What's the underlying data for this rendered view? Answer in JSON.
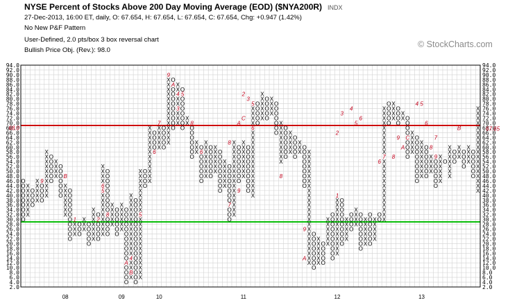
{
  "header": {
    "title": "NYSE Percent of Stocks Above 200 Day Moving Average (EOD) ($NYA200R)",
    "exchange": "INDX",
    "line1": "27-Dec-2013, 16:00 ET, daily, O: 67.654, H: 67.654, L: 67.654, C: 67.654, Chg: +0.947 (1.42%)",
    "line2": "No New P&F Pattern",
    "line3": "User-Defined, 2.0 pts/box 3 box reversal chart",
    "line4": "Bullish Price Obj. (Rev.): 98.0"
  },
  "watermark": "© StockCharts.com",
  "colors": {
    "background": "#ffffff",
    "grid": "#d2d2d2",
    "red_line": "#cc0000",
    "green_line": "#00bb00",
    "month_marker": "#c0001a",
    "price_marker": "#c0001a"
  },
  "chart_data": {
    "type": "point_and_figure",
    "box_size": 2.0,
    "reversal": 3,
    "y_range": [
      2.0,
      94.0
    ],
    "y_ticks": [
      2,
      4,
      6,
      8,
      10,
      12,
      14,
      16,
      18,
      20,
      22,
      24,
      26,
      28,
      30,
      32,
      34,
      36,
      38,
      40,
      42,
      44,
      46,
      48,
      50,
      52,
      54,
      56,
      58,
      60,
      62,
      64,
      66,
      68,
      70,
      72,
      74,
      76,
      78,
      80,
      82,
      84,
      86,
      88,
      90,
      92,
      94
    ],
    "y_tick_labels": [
      "2.0",
      "4.0",
      "6.0",
      "8.0",
      "10.0",
      "12.0",
      "14.0",
      "16.0",
      "18.0",
      "20.0",
      "22.0",
      "24.0",
      "26.0",
      "28.0",
      "30.0",
      "32.0",
      "34.0",
      "36.0",
      "38.0",
      "40.0",
      "42.0",
      "44.0",
      "46.0",
      "48.0",
      "50.0",
      "52.0",
      "54.0",
      "56.0",
      "58.0",
      "60.0",
      "62.0",
      "64.0",
      "66.0",
      "68.0",
      "70.0",
      "72.0",
      "74.0",
      "76.0",
      "78.0",
      "80.0",
      "82.0",
      "84.0",
      "86.0",
      "88.0",
      "90.0",
      "92.0",
      "94.0"
    ],
    "x_labels": [
      {
        "label": "08",
        "col": 9
      },
      {
        "label": "09",
        "col": 21
      },
      {
        "label": "10",
        "col": 29
      },
      {
        "label": "11",
        "col": 47
      },
      {
        "label": "12",
        "col": 67
      },
      {
        "label": "13",
        "col": 85
      }
    ],
    "horizontal_lines": [
      {
        "value": 69.0,
        "color": "red"
      },
      {
        "value": 29.0,
        "color": "green"
      }
    ],
    "last_price": 67.65,
    "last_price_label": "67.65",
    "red_line_label": "68.0",
    "grid": true,
    "columns": [
      {
        "t": "O",
        "lo": 30,
        "hi": 46
      },
      {
        "t": "X",
        "lo": 32,
        "hi": 44
      },
      {
        "t": "O",
        "lo": 36,
        "hi": 42
      },
      {
        "t": "X",
        "lo": 38,
        "hi": 46
      },
      {
        "t": "O",
        "lo": 38,
        "hi": 44
      },
      {
        "t": "X",
        "lo": 40,
        "hi": 58
      },
      {
        "t": "O",
        "lo": 46,
        "hi": 56
      },
      {
        "t": "X",
        "lo": 48,
        "hi": 54
      },
      {
        "t": "O",
        "lo": 40,
        "hi": 52
      },
      {
        "t": "X",
        "lo": 32,
        "hi": 44
      },
      {
        "t": "O",
        "lo": 22,
        "hi": 42
      },
      {
        "t": "X",
        "lo": 24,
        "hi": 30
      },
      {
        "t": "O",
        "lo": 24,
        "hi": 28
      },
      {
        "t": "X",
        "lo": 26,
        "hi": 30
      },
      {
        "t": "O",
        "lo": 20,
        "hi": 28
      },
      {
        "t": "X",
        "lo": 22,
        "hi": 34
      },
      {
        "t": "O",
        "lo": 22,
        "hi": 32
      },
      {
        "t": "X",
        "lo": 24,
        "hi": 52
      },
      {
        "t": "O",
        "lo": 24,
        "hi": 50
      },
      {
        "t": "X",
        "lo": 28,
        "hi": 36
      },
      {
        "t": "O",
        "lo": 24,
        "hi": 34
      },
      {
        "t": "X",
        "lo": 26,
        "hi": 36
      },
      {
        "t": "O",
        "lo": 4,
        "hi": 34
      },
      {
        "t": "X",
        "lo": 6,
        "hi": 40
      },
      {
        "t": "O",
        "lo": 4,
        "hi": 38
      },
      {
        "t": "X",
        "lo": 6,
        "hi": 50
      },
      {
        "t": "O",
        "lo": 44,
        "hi": 50
      },
      {
        "t": "X",
        "lo": 46,
        "hi": 68
      },
      {
        "t": "O",
        "lo": 58,
        "hi": 66
      },
      {
        "t": "X",
        "lo": 60,
        "hi": 68
      },
      {
        "t": "O",
        "lo": 60,
        "hi": 68
      },
      {
        "t": "X",
        "lo": 62,
        "hi": 90
      },
      {
        "t": "O",
        "lo": 68,
        "hi": 88
      },
      {
        "t": "X",
        "lo": 70,
        "hi": 86
      },
      {
        "t": "O",
        "lo": 68,
        "hi": 84
      },
      {
        "t": "X",
        "lo": 70,
        "hi": 72
      },
      {
        "t": "O",
        "lo": 56,
        "hi": 70
      },
      {
        "t": "X",
        "lo": 58,
        "hi": 62
      },
      {
        "t": "O",
        "lo": 46,
        "hi": 60
      },
      {
        "t": "X",
        "lo": 48,
        "hi": 62
      },
      {
        "t": "O",
        "lo": 48,
        "hi": 60
      },
      {
        "t": "X",
        "lo": 50,
        "hi": 60
      },
      {
        "t": "O",
        "lo": 42,
        "hi": 58
      },
      {
        "t": "X",
        "lo": 44,
        "hi": 54
      },
      {
        "t": "O",
        "lo": 30,
        "hi": 52
      },
      {
        "t": "X",
        "lo": 32,
        "hi": 62
      },
      {
        "t": "O",
        "lo": 46,
        "hi": 60
      },
      {
        "t": "X",
        "lo": 48,
        "hi": 62
      },
      {
        "t": "O",
        "lo": 42,
        "hi": 60
      },
      {
        "t": "X",
        "lo": 40,
        "hi": 76
      },
      {
        "t": "O",
        "lo": 70,
        "hi": 78
      },
      {
        "t": "X",
        "lo": 72,
        "hi": 82
      },
      {
        "t": "O",
        "lo": 72,
        "hi": 80
      },
      {
        "t": "X",
        "lo": 74,
        "hi": 80
      },
      {
        "t": "O",
        "lo": 66,
        "hi": 78
      },
      {
        "t": "X",
        "lo": 54,
        "hi": 70
      },
      {
        "t": "O",
        "lo": 56,
        "hi": 68
      },
      {
        "t": "X",
        "lo": 58,
        "hi": 66
      },
      {
        "t": "O",
        "lo": 56,
        "hi": 64
      },
      {
        "t": "X",
        "lo": 58,
        "hi": 62
      },
      {
        "t": "O",
        "lo": 44,
        "hi": 60
      },
      {
        "t": "X",
        "lo": 12,
        "hi": 58
      },
      {
        "t": "O",
        "lo": 10,
        "hi": 24
      },
      {
        "t": "X",
        "lo": 12,
        "hi": 22
      },
      {
        "t": "O",
        "lo": 12,
        "hi": 20
      },
      {
        "t": "X",
        "lo": 20,
        "hi": 30
      },
      {
        "t": "O",
        "lo": 14,
        "hi": 32
      },
      {
        "t": "X",
        "lo": 16,
        "hi": 40
      },
      {
        "t": "O",
        "lo": 20,
        "hi": 38
      },
      {
        "t": "X",
        "lo": 22,
        "hi": 30
      },
      {
        "t": "O",
        "lo": 26,
        "hi": 32
      },
      {
        "t": "X",
        "lo": 28,
        "hi": 34
      },
      {
        "t": "O",
        "lo": 18,
        "hi": 32
      },
      {
        "t": "X",
        "lo": 20,
        "hi": 30
      },
      {
        "t": "O",
        "lo": 20,
        "hi": 32
      },
      {
        "t": "X",
        "lo": 22,
        "hi": 30
      },
      {
        "t": "O",
        "lo": 30,
        "hi": 32
      },
      {
        "t": "X",
        "lo": 30,
        "hi": 76
      },
      {
        "t": "O",
        "lo": 70,
        "hi": 78
      },
      {
        "t": "X",
        "lo": 72,
        "hi": 78
      },
      {
        "t": "O",
        "lo": 70,
        "hi": 76
      },
      {
        "t": "X",
        "lo": 72,
        "hi": 74
      },
      {
        "t": "O",
        "lo": 56,
        "hi": 72
      },
      {
        "t": "X",
        "lo": 58,
        "hi": 66
      },
      {
        "t": "O",
        "lo": 46,
        "hi": 64
      },
      {
        "t": "X",
        "lo": 48,
        "hi": 62
      },
      {
        "t": "O",
        "lo": 48,
        "hi": 60
      },
      {
        "t": "X",
        "lo": 50,
        "hi": 56
      },
      {
        "t": "O",
        "lo": 44,
        "hi": 54
      },
      {
        "t": "X",
        "lo": 46,
        "hi": 56
      },
      {
        "t": "O",
        "lo": 54,
        "hi": 54
      },
      {
        "t": "X",
        "lo": 48,
        "hi": 60
      },
      {
        "t": "O",
        "lo": 54,
        "hi": 58
      },
      {
        "t": "X",
        "lo": 56,
        "hi": 60
      },
      {
        "t": "O",
        "lo": 52,
        "hi": 58
      },
      {
        "t": "X",
        "lo": 54,
        "hi": 60
      },
      {
        "t": "O",
        "lo": 48,
        "hi": 58
      },
      {
        "t": "X",
        "lo": 42,
        "hi": 76
      },
      {
        "t": "O",
        "lo": 56,
        "hi": 74
      },
      {
        "t": "X",
        "lo": 58,
        "hi": 72
      },
      {
        "t": "O",
        "lo": 64,
        "hi": 70
      },
      {
        "t": "X",
        "lo": 66,
        "hi": 82
      },
      {
        "t": "O",
        "lo": 70,
        "hi": 80
      },
      {
        "t": "X",
        "lo": 72,
        "hi": 78
      },
      {
        "t": "O",
        "lo": 56,
        "hi": 76
      },
      {
        "t": "X",
        "lo": 58,
        "hi": 68
      },
      {
        "t": "O",
        "lo": 56,
        "hi": 66
      },
      {
        "t": "X",
        "lo": 58,
        "hi": 66
      },
      {
        "t": "O",
        "lo": 60,
        "hi": 64
      },
      {
        "t": "X",
        "lo": 62,
        "hi": 68
      },
      {
        "t": "O",
        "lo": 60,
        "hi": 66
      },
      {
        "t": "X",
        "lo": 62,
        "hi": 72
      },
      {
        "t": "O",
        "lo": 60,
        "hi": 70
      },
      {
        "t": "X",
        "lo": 62,
        "hi": 68
      },
      {
        "t": "O",
        "lo": 64,
        "hi": 66
      }
    ],
    "month_markers": [
      {
        "col": 4,
        "value": 46,
        "label": "9"
      },
      {
        "col": 9,
        "value": 48,
        "label": "B"
      },
      {
        "col": 11,
        "value": 30,
        "label": "1"
      },
      {
        "col": 16,
        "value": 30,
        "label": "2"
      },
      {
        "col": 17,
        "value": 42,
        "label": "5"
      },
      {
        "col": 17,
        "value": 44,
        "label": "6"
      },
      {
        "col": 18,
        "value": 32,
        "label": "8"
      },
      {
        "col": 25,
        "value": 32,
        "label": "5"
      },
      {
        "col": 22,
        "value": 12,
        "label": "A"
      },
      {
        "col": 23,
        "value": 8,
        "label": "B"
      },
      {
        "col": 23,
        "value": 14,
        "label": "4"
      },
      {
        "col": 29,
        "value": 70,
        "label": "7"
      },
      {
        "col": 28,
        "value": 58,
        "label": "6"
      },
      {
        "col": 31,
        "value": 90,
        "label": "9"
      },
      {
        "col": 32,
        "value": 86,
        "label": "A"
      },
      {
        "col": 33,
        "value": 82,
        "label": "4"
      },
      {
        "col": 34,
        "value": 82,
        "label": "5"
      },
      {
        "col": 33,
        "value": 76,
        "label": "3"
      },
      {
        "col": 36,
        "value": 70,
        "label": "8"
      },
      {
        "col": 38,
        "value": 58,
        "label": "6"
      },
      {
        "col": 44,
        "value": 62,
        "label": "8"
      },
      {
        "col": 47,
        "value": 82,
        "label": "2"
      },
      {
        "col": 48,
        "value": 80,
        "label": "3"
      },
      {
        "col": 49,
        "value": 78,
        "label": "5"
      },
      {
        "col": 46,
        "value": 70,
        "label": "A"
      },
      {
        "col": 47,
        "value": 72,
        "label": "C"
      },
      {
        "col": 49,
        "value": 68,
        "label": "6"
      },
      {
        "col": 46,
        "value": 42,
        "label": "9"
      },
      {
        "col": 44,
        "value": 36,
        "label": "7"
      },
      {
        "col": 55,
        "value": 48,
        "label": "8"
      },
      {
        "col": 60,
        "value": 14,
        "label": "A"
      },
      {
        "col": 60,
        "value": 26,
        "label": "9"
      },
      {
        "col": 67,
        "value": 40,
        "label": "1"
      },
      {
        "col": 67,
        "value": 66,
        "label": "2"
      },
      {
        "col": 68,
        "value": 74,
        "label": "3"
      },
      {
        "col": 70,
        "value": 76,
        "label": "4"
      },
      {
        "col": 71,
        "value": 70,
        "label": "5"
      },
      {
        "col": 72,
        "value": 72,
        "label": "6"
      },
      {
        "col": 76,
        "value": 54,
        "label": "6"
      },
      {
        "col": 77,
        "value": 56,
        "label": "7"
      },
      {
        "col": 79,
        "value": 56,
        "label": "8"
      },
      {
        "col": 80,
        "value": 64,
        "label": "9"
      },
      {
        "col": 81,
        "value": 60,
        "label": "A"
      },
      {
        "col": 84,
        "value": 78,
        "label": "4"
      },
      {
        "col": 85,
        "value": 78,
        "label": "5"
      },
      {
        "col": 82,
        "value": 64,
        "label": "C"
      },
      {
        "col": 87,
        "value": 60,
        "label": "8"
      },
      {
        "col": 88,
        "value": 56,
        "label": "9"
      },
      {
        "col": 86,
        "value": 70,
        "label": "6"
      },
      {
        "col": 88,
        "value": 64,
        "label": "7"
      },
      {
        "col": 93,
        "value": 68,
        "label": "B"
      }
    ]
  }
}
